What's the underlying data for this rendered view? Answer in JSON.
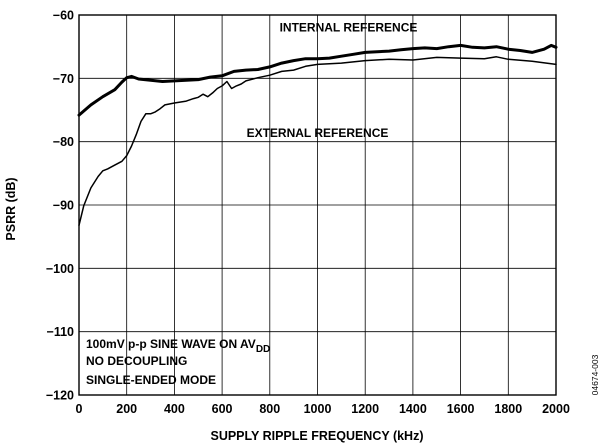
{
  "chart_data": {
    "type": "line",
    "xlabel": "SUPPLY RIPPLE FREQUENCY (kHz)",
    "ylabel": "PSRR (dB)",
    "xlim": [
      0,
      2000
    ],
    "ylim": [
      -120,
      -60
    ],
    "x_ticks": [
      0,
      200,
      400,
      600,
      800,
      1000,
      1200,
      1400,
      1600,
      1800,
      2000
    ],
    "y_ticks": [
      -120,
      -110,
      -100,
      -90,
      -80,
      -70,
      -60
    ],
    "x_tick_labels": [
      "0",
      "200",
      "400",
      "600",
      "800",
      "1000",
      "1200",
      "1400",
      "1600",
      "1800",
      "2000"
    ],
    "y_tick_labels": [
      "−120",
      "−110",
      "−100",
      "−90",
      "−80",
      "−70",
      "−60"
    ],
    "grid": true,
    "series": [
      {
        "name": "INTERNAL REFERENCE",
        "line_weight": "thick",
        "x": [
          0,
          50,
          100,
          150,
          180,
          200,
          220,
          250,
          300,
          350,
          400,
          450,
          500,
          550,
          600,
          650,
          700,
          750,
          800,
          850,
          900,
          950,
          1000,
          1050,
          1100,
          1150,
          1200,
          1250,
          1300,
          1350,
          1400,
          1450,
          1500,
          1550,
          1600,
          1650,
          1700,
          1750,
          1800,
          1850,
          1900,
          1950,
          1980,
          2000
        ],
        "y": [
          -75.8,
          -74.2,
          -72.9,
          -71.8,
          -70.6,
          -69.9,
          -69.7,
          -70.1,
          -70.3,
          -70.5,
          -70.4,
          -70.3,
          -70.2,
          -69.8,
          -69.6,
          -68.9,
          -68.7,
          -68.6,
          -68.2,
          -67.6,
          -67.2,
          -66.9,
          -66.9,
          -66.8,
          -66.5,
          -66.2,
          -65.9,
          -65.8,
          -65.7,
          -65.5,
          -65.3,
          -65.2,
          -65.3,
          -65.0,
          -64.8,
          -65.1,
          -65.2,
          -65.0,
          -65.4,
          -65.6,
          -65.9,
          -65.4,
          -64.8,
          -65.1
        ]
      },
      {
        "name": "EXTERNAL REFERENCE",
        "line_weight": "thin",
        "x": [
          0,
          20,
          50,
          80,
          100,
          120,
          150,
          180,
          200,
          220,
          240,
          260,
          280,
          300,
          320,
          340,
          360,
          400,
          450,
          480,
          500,
          520,
          540,
          560,
          580,
          600,
          620,
          640,
          660,
          680,
          700,
          750,
          800,
          850,
          900,
          950,
          1000,
          1100,
          1200,
          1300,
          1400,
          1500,
          1600,
          1700,
          1750,
          1800,
          1900,
          2000
        ],
        "y": [
          -93.2,
          -90.1,
          -87.3,
          -85.5,
          -84.6,
          -84.3,
          -83.7,
          -83.1,
          -82.2,
          -80.7,
          -78.9,
          -76.8,
          -75.6,
          -75.6,
          -75.3,
          -74.8,
          -74.2,
          -73.9,
          -73.6,
          -73.2,
          -73.0,
          -72.5,
          -72.9,
          -72.3,
          -71.6,
          -71.2,
          -70.5,
          -71.6,
          -71.2,
          -70.9,
          -70.4,
          -69.9,
          -69.5,
          -68.9,
          -68.7,
          -68.1,
          -67.8,
          -67.6,
          -67.2,
          -67.0,
          -67.1,
          -66.7,
          -66.8,
          -66.9,
          -66.6,
          -67.0,
          -67.3,
          -67.8
        ]
      }
    ],
    "series_labels": [
      {
        "text": "INTERNAL REFERENCE",
        "x": 1130,
        "y": -62.6
      },
      {
        "text": "EXTERNAL REFERENCE",
        "x": 1000,
        "y": -79.3
      }
    ],
    "conditions": [
      "100mV p-p SINE WAVE ON AV",
      "NO DECOUPLING",
      "SINGLE-ENDED MODE"
    ],
    "conditions_subscript": "DD",
    "figure_code": "04674-003"
  }
}
